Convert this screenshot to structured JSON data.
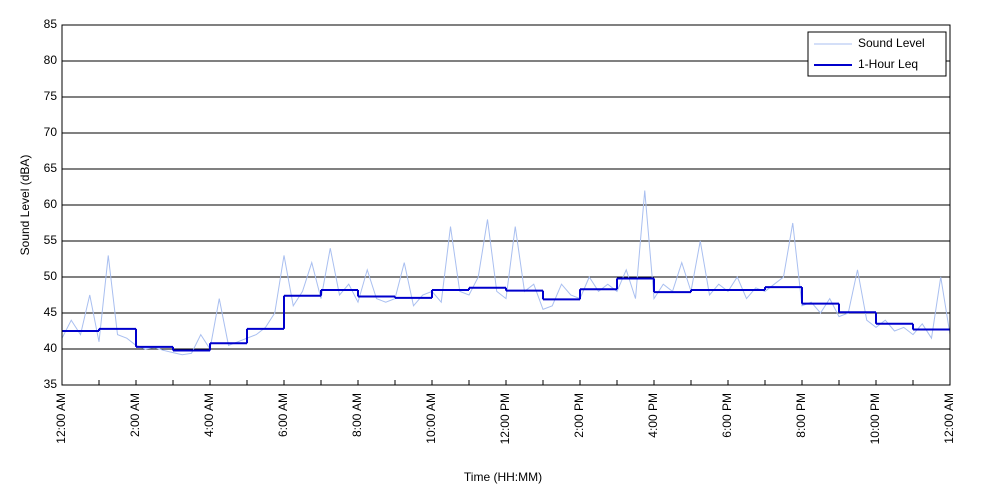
{
  "chart_data": {
    "type": "line",
    "xlabel": "Time (HH:MM)",
    "ylabel": "Sound Level (dBA)",
    "xlim": [
      0,
      24
    ],
    "xticks": [
      {
        "value": 0,
        "label": "12:00 AM"
      },
      {
        "value": 2,
        "label": "2:00 AM"
      },
      {
        "value": 4,
        "label": "4:00 AM"
      },
      {
        "value": 6,
        "label": "6:00 AM"
      },
      {
        "value": 8,
        "label": "8:00 AM"
      },
      {
        "value": 10,
        "label": "10:00 AM"
      },
      {
        "value": 12,
        "label": "12:00 PM"
      },
      {
        "value": 14,
        "label": "2:00 PM"
      },
      {
        "value": 16,
        "label": "4:00 PM"
      },
      {
        "value": 18,
        "label": "6:00 PM"
      },
      {
        "value": 20,
        "label": "8:00 PM"
      },
      {
        "value": 22,
        "label": "10:00 PM"
      },
      {
        "value": 24,
        "label": "12:00 AM"
      }
    ],
    "xminorticks": [
      1,
      3,
      5,
      7,
      9,
      11,
      13,
      15,
      17,
      19,
      21,
      23
    ],
    "ylim": [
      35,
      85
    ],
    "yticks": [
      35,
      40,
      45,
      50,
      55,
      60,
      65,
      70,
      75,
      80,
      85
    ],
    "grid": true,
    "legend": "upper right",
    "series": [
      {
        "name": "Sound Level",
        "color": "#a9bff0",
        "style": "line",
        "x": [
          0,
          0.25,
          0.5,
          0.75,
          1,
          1.25,
          1.5,
          1.75,
          2,
          2.25,
          2.5,
          2.75,
          3,
          3.25,
          3.5,
          3.75,
          4,
          4.25,
          4.5,
          4.75,
          5,
          5.25,
          5.5,
          5.75,
          6,
          6.25,
          6.5,
          6.75,
          7,
          7.25,
          7.5,
          7.75,
          8,
          8.25,
          8.5,
          8.75,
          9,
          9.25,
          9.5,
          9.75,
          10,
          10.25,
          10.5,
          10.75,
          11,
          11.25,
          11.5,
          11.75,
          12,
          12.25,
          12.5,
          12.75,
          13,
          13.25,
          13.5,
          13.75,
          14,
          14.25,
          14.5,
          14.75,
          15,
          15.25,
          15.5,
          15.75,
          16,
          16.25,
          16.5,
          16.75,
          17,
          17.25,
          17.5,
          17.75,
          18,
          18.25,
          18.5,
          18.75,
          19,
          19.25,
          19.5,
          19.75,
          20,
          20.25,
          20.5,
          20.75,
          21,
          21.25,
          21.5,
          21.75,
          22,
          22.25,
          22.5,
          22.75,
          23,
          23.25,
          23.5,
          23.75,
          24
        ],
        "values": [
          41.5,
          44,
          42,
          47.5,
          41,
          53,
          42,
          41.5,
          40.5,
          40,
          40.2,
          39.8,
          39.5,
          39.2,
          39.4,
          42,
          40,
          47,
          40.5,
          41,
          41.5,
          42,
          43,
          45,
          53,
          46,
          48,
          52,
          47,
          54,
          47.5,
          49,
          46.5,
          51,
          47,
          46.5,
          47,
          52,
          46,
          47.5,
          48,
          46.5,
          57,
          48,
          47.5,
          50,
          58,
          48,
          47,
          57,
          48,
          49,
          45.5,
          46,
          49,
          47.5,
          47,
          50,
          48,
          49,
          48,
          51,
          47,
          62,
          47,
          49,
          48,
          52,
          48,
          55,
          47.5,
          49,
          48,
          50,
          47,
          48.5,
          48,
          49,
          50,
          57.5,
          46,
          46.5,
          45,
          47,
          44.5,
          45,
          51,
          44,
          43,
          44,
          42.5,
          43,
          42,
          43.5,
          41.5,
          50,
          42
        ]
      },
      {
        "name": "1-Hour Leq",
        "color": "#0000cc",
        "style": "step",
        "x": [
          0,
          1,
          2,
          3,
          4,
          5,
          6,
          7,
          8,
          9,
          10,
          11,
          12,
          13,
          14,
          15,
          16,
          17,
          18,
          19,
          20,
          21,
          22,
          23
        ],
        "values": [
          42.5,
          42.8,
          40.3,
          39.8,
          40.8,
          42.8,
          47.4,
          48.2,
          47.3,
          47.1,
          48.2,
          48.5,
          48.1,
          46.9,
          48.3,
          49.8,
          47.9,
          48.2,
          48.2,
          48.6,
          46.3,
          45.1,
          43.5,
          42.7
        ]
      }
    ]
  }
}
